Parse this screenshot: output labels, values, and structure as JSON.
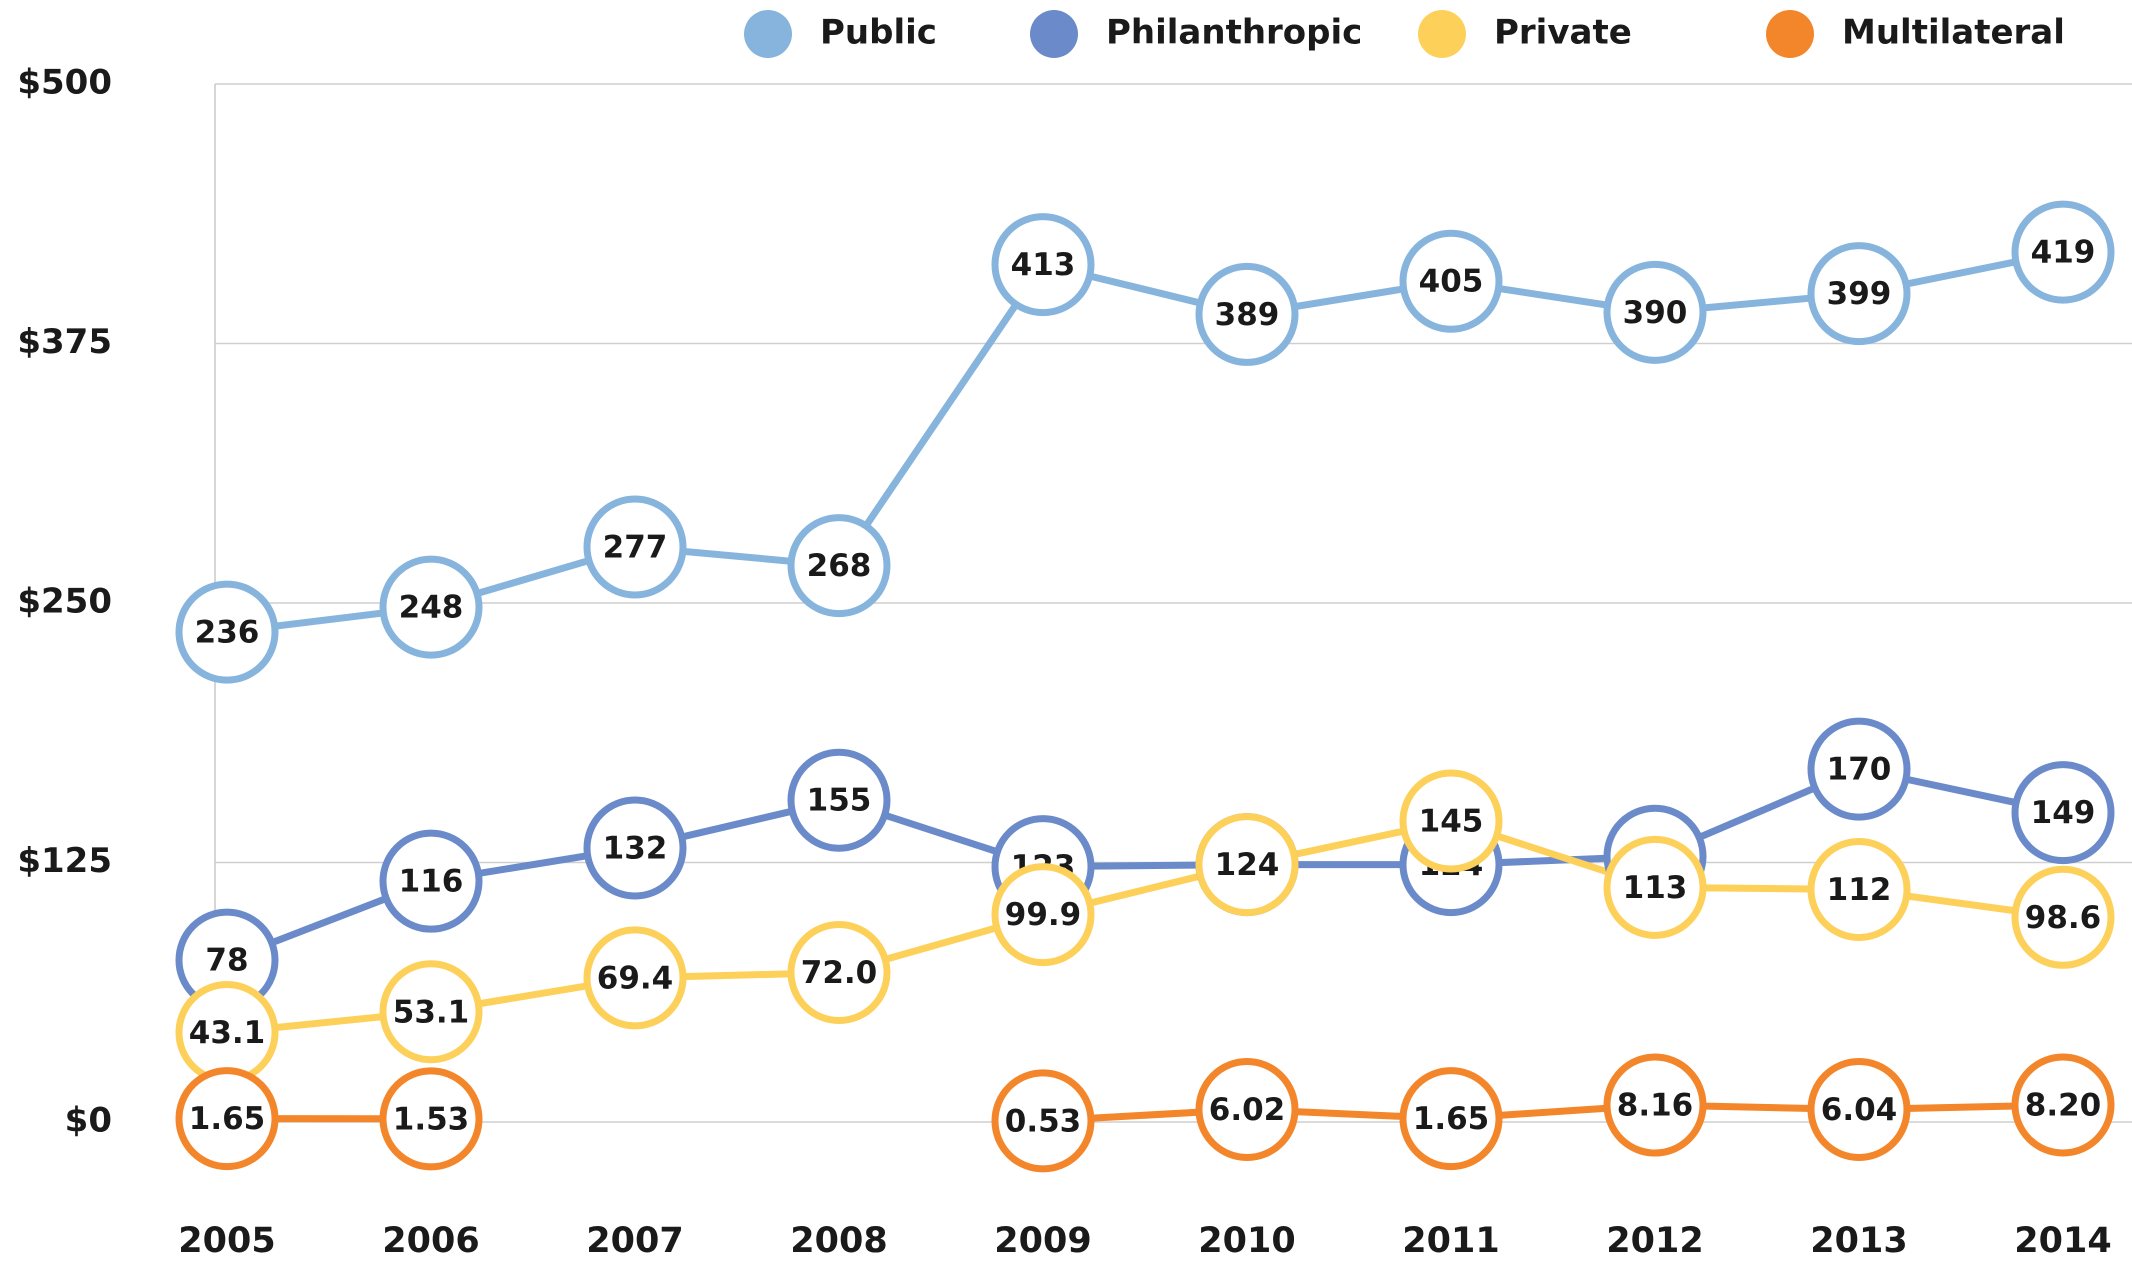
{
  "chart_data": {
    "type": "line",
    "categories": [
      "2005",
      "2006",
      "2007",
      "2008",
      "2009",
      "2010",
      "2011",
      "2012",
      "2013",
      "2014"
    ],
    "series": [
      {
        "name": "Public",
        "color": "#86b4dc",
        "values": [
          236,
          248,
          277,
          268,
          413,
          389,
          405,
          390,
          399,
          419
        ]
      },
      {
        "name": "Philanthropic",
        "color": "#6b8ac9",
        "values": [
          78,
          116,
          132,
          155,
          123,
          124,
          124,
          128,
          170,
          149
        ]
      },
      {
        "name": "Private",
        "color": "#fdd05a",
        "values": [
          43.1,
          53.1,
          69.4,
          72.0,
          99.9,
          124,
          145,
          113,
          112,
          98.6
        ],
        "value_labels": [
          "43.1",
          "53.1",
          "69.4",
          "72.0",
          "99.9",
          "124",
          "145",
          "113",
          "112",
          "98.6"
        ]
      },
      {
        "name": "Multilateral",
        "color": "#f3862a",
        "values": [
          1.65,
          1.53,
          null,
          null,
          0.53,
          6.02,
          1.65,
          8.16,
          6.04,
          8.2
        ],
        "value_labels": [
          "1.65",
          "1.53",
          null,
          null,
          "0.53",
          "6.02",
          "1.65",
          "8.16",
          "6.04",
          "8.20"
        ]
      }
    ],
    "ylim": [
      0,
      500
    ],
    "yticks": [
      {
        "value": 0,
        "label": "$0"
      },
      {
        "value": 125,
        "label": "$125"
      },
      {
        "value": 250,
        "label": "$250"
      },
      {
        "value": 375,
        "label": "$375"
      },
      {
        "value": 500,
        "label": "$500"
      }
    ],
    "grid": true,
    "legend": "top"
  }
}
